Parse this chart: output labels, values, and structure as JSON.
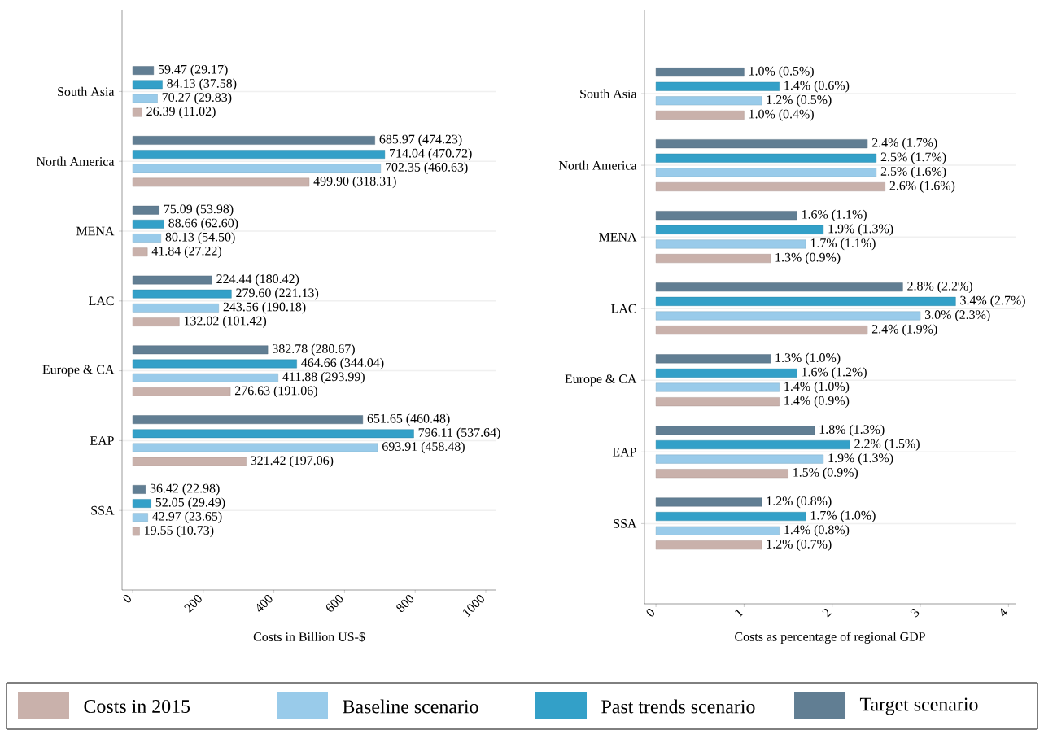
{
  "chart_data": [
    {
      "type": "bar",
      "orientation": "horizontal",
      "xlabel": "Costs in Billion US-$",
      "categories": [
        "South Asia",
        "North America",
        "MENA",
        "LAC",
        "Europe & CA",
        "EAP",
        "SSA"
      ],
      "xlim": [
        -30,
        1030
      ],
      "xticks": [
        0,
        200,
        400,
        600,
        800,
        1000
      ],
      "grid": "y",
      "legend": "bottom",
      "series": [
        {
          "name": "Costs in 2015",
          "color": "#c9b1ab",
          "values": [
            26.39,
            499.9,
            41.84,
            132.02,
            276.63,
            321.42,
            19.55
          ],
          "value_labels": [
            "26.39 (11.02)",
            "499.90 (318.31)",
            "41.84 (27.22)",
            "132.02 (101.42)",
            "276.63 (191.06)",
            "321.42 (197.06)",
            "19.55 (10.73)"
          ]
        },
        {
          "name": "Baseline scenario",
          "color": "#99cbea",
          "values": [
            70.27,
            702.35,
            80.13,
            243.56,
            411.88,
            693.91,
            42.97
          ],
          "value_labels": [
            "70.27 (29.83)",
            "702.35 (460.63)",
            "80.13 (54.50)",
            "243.56 (190.18)",
            "411.88 (293.99)",
            "693.91 (458.48)",
            "42.97 (23.65)"
          ]
        },
        {
          "name": "Past trends scenario",
          "color": "#33a0c8",
          "values": [
            84.13,
            714.04,
            88.66,
            279.6,
            464.66,
            796.11,
            52.05
          ],
          "value_labels": [
            "84.13 (37.58)",
            "714.04 (470.72)",
            "88.66 (62.60)",
            "279.60 (221.13)",
            "464.66 (344.04)",
            "796.11 (537.64)",
            "52.05 (29.49)"
          ]
        },
        {
          "name": "Target scenario",
          "color": "#617e93",
          "values": [
            59.47,
            685.97,
            75.09,
            224.44,
            382.78,
            651.65,
            36.42
          ],
          "value_labels": [
            "59.47 (29.17)",
            "685.97 (474.23)",
            "75.09 (53.98)",
            "224.44 (180.42)",
            "382.78 (280.67)",
            "651.65 (460.48)",
            "36.42 (22.98)"
          ]
        }
      ]
    },
    {
      "type": "bar",
      "orientation": "horizontal",
      "xlabel": "Costs as percentage of regional GDP",
      "categories": [
        "South Asia",
        "North America",
        "MENA",
        "LAC",
        "Europe & CA",
        "EAP",
        "SSA"
      ],
      "xlim": [
        -0.13,
        4.08
      ],
      "xticks": [
        0,
        1,
        2,
        3,
        4
      ],
      "grid": "y",
      "series": [
        {
          "color": "#c9b1ab",
          "values": [
            1.0,
            2.6,
            1.3,
            2.4,
            1.4,
            1.5,
            1.2
          ],
          "value_labels": [
            "1.0% (0.4%)",
            "2.6% (1.6%)",
            "1.3% (0.9%)",
            "2.4% (1.9%)",
            "1.4% (0.9%)",
            "1.5% (0.9%)",
            "1.2% (0.7%)"
          ]
        },
        {
          "color": "#99cbea",
          "values": [
            1.2,
            2.5,
            1.7,
            3.0,
            1.4,
            1.9,
            1.4
          ],
          "value_labels": [
            "1.2% (0.5%)",
            "2.5% (1.6%)",
            "1.7% (1.1%)",
            "3.0% (2.3%)",
            "1.4% (1.0%)",
            "1.9% (1.3%)",
            "1.4% (0.8%)"
          ]
        },
        {
          "color": "#33a0c8",
          "values": [
            1.4,
            2.5,
            1.9,
            3.4,
            1.6,
            2.2,
            1.7
          ],
          "value_labels": [
            "1.4% (0.6%)",
            "2.5% (1.7%)",
            "1.9% (1.3%)",
            "3.4% (2.7%)",
            "1.6% (1.2%)",
            "2.2% (1.5%)",
            "1.7% (1.0%)"
          ]
        },
        {
          "color": "#617e93",
          "values": [
            1.0,
            2.4,
            1.6,
            2.8,
            1.3,
            1.8,
            1.2
          ],
          "value_labels": [
            "1.0% (0.5%)",
            "2.4% (1.7%)",
            "1.6% (1.1%)",
            "2.8% (2.2%)",
            "1.3% (1.0%)",
            "1.8% (1.3%)",
            "1.2% (0.8%)"
          ]
        }
      ]
    }
  ]
}
